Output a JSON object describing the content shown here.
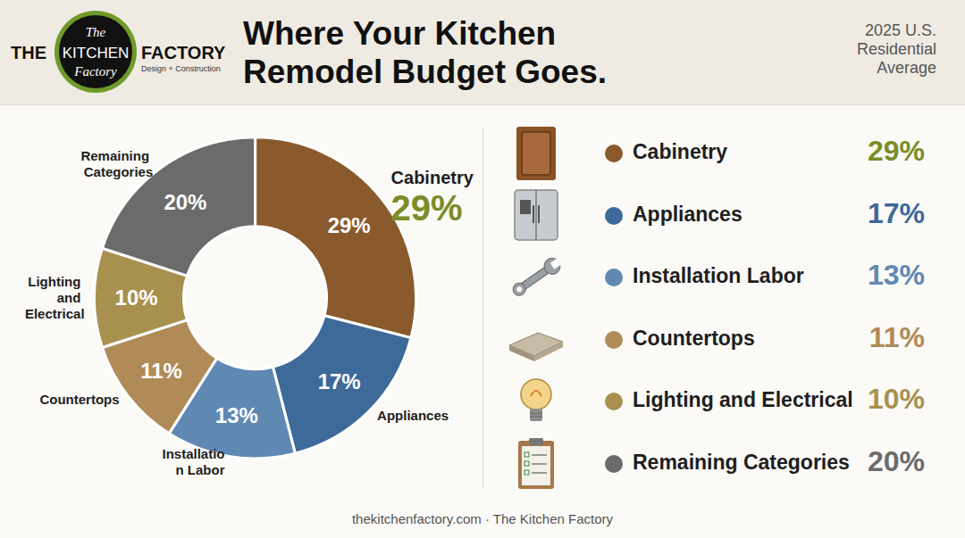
{
  "logo": {
    "left": "THE",
    "center": "KITCHEN",
    "right": "FACTORY",
    "script_top": "The",
    "script_bottom": "Factory",
    "tagline": "Design + Construction"
  },
  "chart_data": {
    "type": "pie",
    "title": "Where Your Kitchen Remodel Budget Goes.",
    "subtitle": "2025 U.S. Residential Average",
    "categories": [
      "Cabinetry",
      "Appliances",
      "Installation Labor",
      "Countertops",
      "Lighting and Electrical",
      "Remaining Categories"
    ],
    "values": [
      29,
      17,
      13,
      11,
      10,
      20
    ],
    "value_labels": [
      "29%",
      "17%",
      "13%",
      "11%",
      "10%",
      "20%"
    ],
    "colors": [
      "#8a5a2c",
      "#3e6a99",
      "#5f89b3",
      "#b08b57",
      "#a8904f",
      "#6b6b6b"
    ],
    "data_labels": true
  },
  "footer": "thekitchenfactory.com · The Kitchen Factory"
}
